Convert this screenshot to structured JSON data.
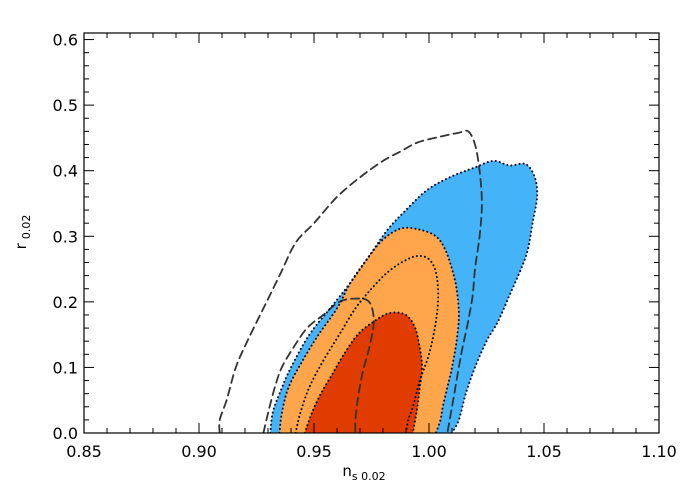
{
  "chart_data": {
    "type": "contour",
    "xlabel_main": "n",
    "xlabel_sub": "s 0.02",
    "ylabel_main": "r",
    "ylabel_sub": "0.02",
    "xlim": [
      0.85,
      1.1
    ],
    "ylim": [
      0.0,
      0.61
    ],
    "xticks": [
      0.85,
      0.9,
      0.95,
      1.0,
      1.05,
      1.1
    ],
    "xtick_labels": [
      "0.85",
      "0.90",
      "0.95",
      "1.00",
      "1.05",
      "1.10"
    ],
    "yticks": [
      0.0,
      0.1,
      0.2,
      0.3,
      0.4,
      0.5,
      0.6
    ],
    "ytick_labels": [
      "0.0",
      "0.1",
      "0.2",
      "0.3",
      "0.4",
      "0.5",
      "0.6"
    ],
    "x_minor_step": 0.01,
    "y_minor_step": 0.02,
    "colors": {
      "blue": "#45b3f7",
      "orange": "#ffa64d",
      "red": "#e03c00",
      "dashed": "#333333",
      "dotted": "#0c0c2c"
    },
    "filled_regions": [
      {
        "id": "blue-95",
        "color": "blue",
        "points": [
          [
            0.931,
            0.0
          ],
          [
            0.932,
            0.03
          ],
          [
            0.935,
            0.06
          ],
          [
            0.94,
            0.1
          ],
          [
            0.948,
            0.15
          ],
          [
            0.957,
            0.19
          ],
          [
            0.966,
            0.23
          ],
          [
            0.974,
            0.27
          ],
          [
            0.982,
            0.31
          ],
          [
            0.99,
            0.34
          ],
          [
            0.999,
            0.37
          ],
          [
            1.009,
            0.39
          ],
          [
            1.02,
            0.405
          ],
          [
            1.028,
            0.415
          ],
          [
            1.035,
            0.408
          ],
          [
            1.042,
            0.41
          ],
          [
            1.046,
            0.39
          ],
          [
            1.047,
            0.36
          ],
          [
            1.045,
            0.32
          ],
          [
            1.043,
            0.28
          ],
          [
            1.04,
            0.25
          ],
          [
            1.035,
            0.21
          ],
          [
            1.03,
            0.17
          ],
          [
            1.025,
            0.14
          ],
          [
            1.02,
            0.1
          ],
          [
            1.016,
            0.06
          ],
          [
            1.013,
            0.02
          ],
          [
            1.01,
            0.0
          ]
        ]
      },
      {
        "id": "blue-68",
        "color": "orange",
        "points": [
          [
            0.935,
            0.0
          ],
          [
            0.936,
            0.03
          ],
          [
            0.939,
            0.07
          ],
          [
            0.945,
            0.11
          ],
          [
            0.952,
            0.15
          ],
          [
            0.96,
            0.19
          ],
          [
            0.966,
            0.23
          ],
          [
            0.973,
            0.265
          ],
          [
            0.98,
            0.295
          ],
          [
            0.988,
            0.312
          ],
          [
            0.996,
            0.31
          ],
          [
            1.003,
            0.3
          ],
          [
            1.007,
            0.28
          ],
          [
            1.01,
            0.25
          ],
          [
            1.012,
            0.22
          ],
          [
            1.013,
            0.18
          ],
          [
            1.012,
            0.14
          ],
          [
            1.01,
            0.1
          ],
          [
            1.008,
            0.07
          ],
          [
            1.006,
            0.04
          ],
          [
            1.005,
            0.02
          ],
          [
            1.003,
            0.0
          ]
        ]
      },
      {
        "id": "red-68",
        "color": "red",
        "points": [
          [
            0.946,
            0.0
          ],
          [
            0.949,
            0.03
          ],
          [
            0.953,
            0.06
          ],
          [
            0.958,
            0.09
          ],
          [
            0.963,
            0.12
          ],
          [
            0.969,
            0.15
          ],
          [
            0.976,
            0.17
          ],
          [
            0.983,
            0.183
          ],
          [
            0.99,
            0.18
          ],
          [
            0.994,
            0.16
          ],
          [
            0.996,
            0.13
          ],
          [
            0.997,
            0.1
          ],
          [
            0.996,
            0.07
          ],
          [
            0.995,
            0.04
          ],
          [
            0.994,
            0.02
          ],
          [
            0.993,
            0.0
          ]
        ]
      }
    ],
    "line_regions": [
      {
        "id": "dashed-large",
        "style": "dashed",
        "points": [
          [
            0.909,
            0.0
          ],
          [
            0.909,
            0.02
          ],
          [
            0.912,
            0.05
          ],
          [
            0.916,
            0.1
          ],
          [
            0.921,
            0.14
          ],
          [
            0.928,
            0.19
          ],
          [
            0.935,
            0.24
          ],
          [
            0.942,
            0.29
          ],
          [
            0.95,
            0.32
          ],
          [
            0.96,
            0.36
          ],
          [
            0.97,
            0.39
          ],
          [
            0.98,
            0.415
          ],
          [
            0.988,
            0.43
          ],
          [
            0.995,
            0.443
          ],
          [
            1.005,
            0.452
          ],
          [
            1.013,
            0.458
          ],
          [
            1.017,
            0.46
          ],
          [
            1.02,
            0.44
          ],
          [
            1.022,
            0.4
          ],
          [
            1.023,
            0.35
          ],
          [
            1.022,
            0.3
          ],
          [
            1.02,
            0.25
          ],
          [
            1.019,
            0.21
          ],
          [
            1.017,
            0.17
          ],
          [
            1.014,
            0.12
          ],
          [
            1.011,
            0.06
          ],
          [
            1.009,
            0.02
          ],
          [
            1.008,
            0.0
          ]
        ]
      },
      {
        "id": "dashed-small",
        "style": "dashed",
        "points": [
          [
            0.928,
            0.0
          ],
          [
            0.93,
            0.03
          ],
          [
            0.933,
            0.07
          ],
          [
            0.936,
            0.1
          ],
          [
            0.941,
            0.13
          ],
          [
            0.947,
            0.16
          ],
          [
            0.954,
            0.18
          ],
          [
            0.961,
            0.2
          ],
          [
            0.968,
            0.205
          ],
          [
            0.974,
            0.2
          ],
          [
            0.976,
            0.17
          ],
          [
            0.974,
            0.13
          ],
          [
            0.971,
            0.09
          ],
          [
            0.969,
            0.05
          ],
          [
            0.968,
            0.02
          ],
          [
            0.968,
            0.0
          ]
        ]
      },
      {
        "id": "dotted-outer",
        "style": "dotted",
        "points": [
          [
            0.931,
            0.0
          ],
          [
            0.932,
            0.03
          ],
          [
            0.935,
            0.06
          ],
          [
            0.94,
            0.1
          ],
          [
            0.948,
            0.15
          ],
          [
            0.957,
            0.19
          ],
          [
            0.966,
            0.23
          ],
          [
            0.974,
            0.27
          ],
          [
            0.982,
            0.31
          ],
          [
            0.99,
            0.34
          ],
          [
            0.999,
            0.37
          ],
          [
            1.009,
            0.39
          ],
          [
            1.02,
            0.405
          ],
          [
            1.028,
            0.415
          ],
          [
            1.035,
            0.408
          ],
          [
            1.042,
            0.41
          ],
          [
            1.046,
            0.39
          ],
          [
            1.047,
            0.36
          ],
          [
            1.045,
            0.32
          ],
          [
            1.043,
            0.28
          ],
          [
            1.04,
            0.25
          ],
          [
            1.035,
            0.21
          ],
          [
            1.03,
            0.17
          ],
          [
            1.025,
            0.14
          ],
          [
            1.02,
            0.1
          ],
          [
            1.016,
            0.06
          ],
          [
            1.013,
            0.02
          ],
          [
            1.01,
            0.0
          ]
        ]
      },
      {
        "id": "dotted-orange",
        "style": "dotted",
        "points": [
          [
            0.935,
            0.0
          ],
          [
            0.936,
            0.03
          ],
          [
            0.939,
            0.07
          ],
          [
            0.945,
            0.11
          ],
          [
            0.952,
            0.15
          ],
          [
            0.96,
            0.19
          ],
          [
            0.966,
            0.23
          ],
          [
            0.973,
            0.265
          ],
          [
            0.98,
            0.295
          ],
          [
            0.988,
            0.312
          ],
          [
            0.996,
            0.31
          ],
          [
            1.003,
            0.3
          ],
          [
            1.007,
            0.28
          ],
          [
            1.01,
            0.25
          ],
          [
            1.012,
            0.22
          ],
          [
            1.013,
            0.18
          ],
          [
            1.012,
            0.14
          ],
          [
            1.01,
            0.1
          ],
          [
            1.008,
            0.07
          ],
          [
            1.006,
            0.04
          ],
          [
            1.005,
            0.02
          ],
          [
            1.003,
            0.0
          ]
        ]
      },
      {
        "id": "dotted-inner",
        "style": "dotted",
        "points": [
          [
            0.942,
            0.0
          ],
          [
            0.944,
            0.03
          ],
          [
            0.948,
            0.07
          ],
          [
            0.954,
            0.11
          ],
          [
            0.961,
            0.15
          ],
          [
            0.968,
            0.19
          ],
          [
            0.975,
            0.22
          ],
          [
            0.982,
            0.245
          ],
          [
            0.989,
            0.262
          ],
          [
            0.995,
            0.27
          ],
          [
            1.0,
            0.265
          ],
          [
            1.003,
            0.245
          ],
          [
            1.004,
            0.21
          ],
          [
            1.003,
            0.17
          ],
          [
            1.0,
            0.12
          ],
          [
            0.996,
            0.08
          ],
          [
            0.993,
            0.04
          ],
          [
            0.991,
            0.02
          ],
          [
            0.99,
            0.0
          ]
        ]
      },
      {
        "id": "dotted-red",
        "style": "dotted",
        "points": [
          [
            0.946,
            0.0
          ],
          [
            0.949,
            0.03
          ],
          [
            0.953,
            0.06
          ],
          [
            0.958,
            0.09
          ],
          [
            0.963,
            0.12
          ],
          [
            0.969,
            0.15
          ],
          [
            0.976,
            0.17
          ],
          [
            0.983,
            0.183
          ],
          [
            0.99,
            0.18
          ],
          [
            0.994,
            0.16
          ],
          [
            0.996,
            0.13
          ],
          [
            0.997,
            0.1
          ],
          [
            0.996,
            0.07
          ],
          [
            0.995,
            0.04
          ],
          [
            0.994,
            0.02
          ],
          [
            0.993,
            0.0
          ]
        ]
      }
    ]
  }
}
